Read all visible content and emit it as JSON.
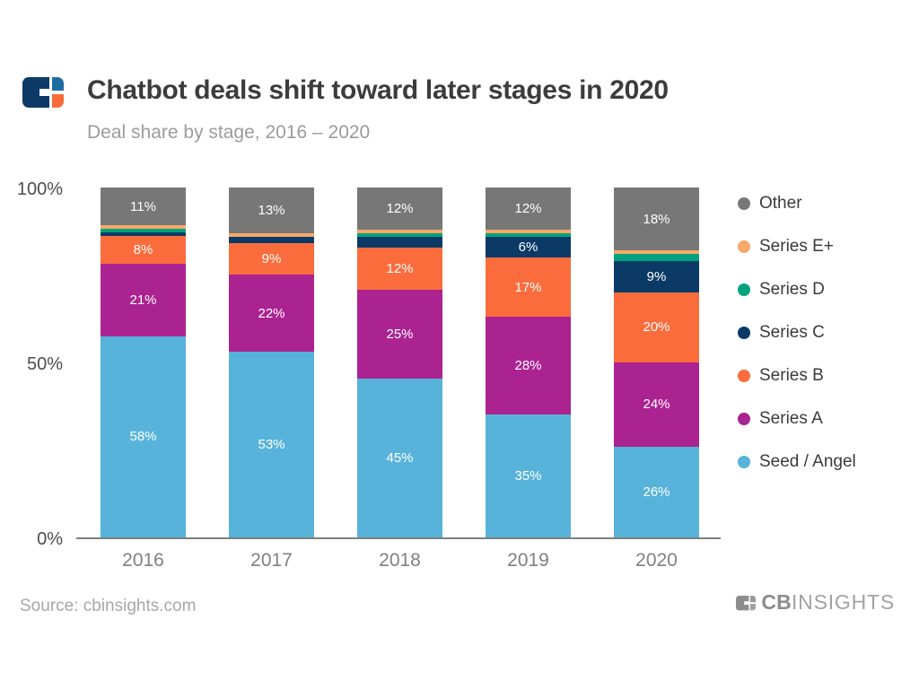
{
  "header": {
    "title": "Chatbot deals shift toward later stages in 2020",
    "subtitle": "Deal share by stage, 2016 – 2020"
  },
  "chart_data": {
    "type": "bar",
    "variant": "stacked-100",
    "title": "Chatbot deals shift toward later stages in 2020",
    "subtitle": "Deal share by stage, 2016 – 2020",
    "categories": [
      "2016",
      "2017",
      "2018",
      "2019",
      "2020"
    ],
    "series": [
      {
        "name": "Seed / Angel",
        "color": "#57b3da",
        "values": [
          58,
          53,
          45,
          35,
          26
        ]
      },
      {
        "name": "Series A",
        "color": "#ab2391",
        "values": [
          21,
          22,
          25,
          28,
          24
        ]
      },
      {
        "name": "Series B",
        "color": "#fb6c3c",
        "values": [
          8,
          9,
          12,
          17,
          20
        ]
      },
      {
        "name": "Series C",
        "color": "#0b3a66",
        "values": [
          1,
          2,
          3,
          6,
          9
        ]
      },
      {
        "name": "Series D",
        "color": "#00a37d",
        "values": [
          1,
          0,
          1,
          1,
          2
        ]
      },
      {
        "name": "Series E+",
        "color": "#f8a868",
        "values": [
          1,
          1,
          1,
          1,
          1
        ]
      },
      {
        "name": "Other",
        "color": "#777777",
        "values": [
          11,
          13,
          12,
          12,
          18
        ]
      }
    ],
    "label_threshold": 6,
    "label_suffix": "%",
    "y_ticks": [
      {
        "label": "0%",
        "value": 0
      },
      {
        "label": "50%",
        "value": 50
      },
      {
        "label": "100%",
        "value": 100
      }
    ],
    "ylim": [
      0,
      100
    ],
    "grid": false,
    "legend_position": "right",
    "legend_order_top_to_bottom": [
      "Other",
      "Series E+",
      "Series D",
      "Series C",
      "Series B",
      "Series A",
      "Seed / Angel"
    ]
  },
  "footer": {
    "source": "Source: cbinsights.com",
    "brand_cb": "CB",
    "brand_insights": "INSIGHTS"
  }
}
